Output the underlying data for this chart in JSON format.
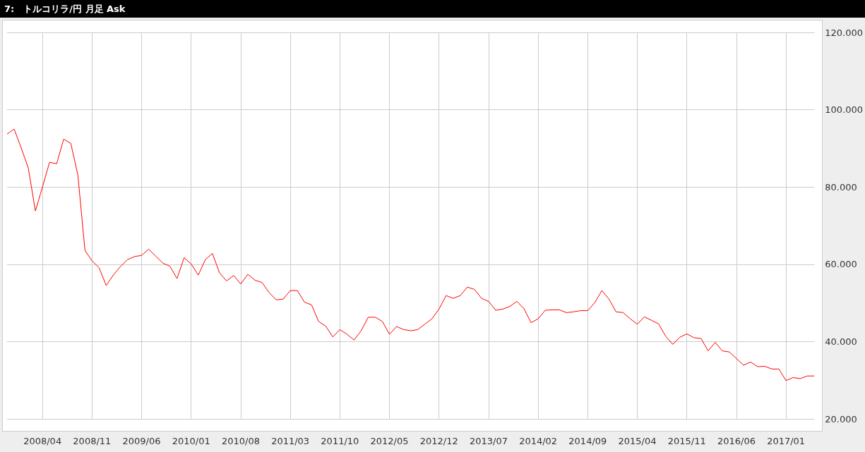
{
  "chart_data": {
    "type": "line",
    "title": "7:　トルコリラ/円 月足 Ask",
    "categories": [
      null,
      null,
      null,
      null,
      null,
      "2008/04",
      null,
      null,
      null,
      null,
      null,
      null,
      "2008/11",
      null,
      null,
      null,
      null,
      null,
      null,
      "2009/06",
      null,
      null,
      null,
      null,
      null,
      null,
      "2010/01",
      null,
      null,
      null,
      null,
      null,
      null,
      "2010/08",
      null,
      null,
      null,
      null,
      null,
      null,
      "2011/03",
      null,
      null,
      null,
      null,
      null,
      null,
      "2011/10",
      null,
      null,
      null,
      null,
      null,
      null,
      "2012/05",
      null,
      null,
      null,
      null,
      null,
      null,
      "2012/12",
      null,
      null,
      null,
      null,
      null,
      null,
      "2013/07",
      null,
      null,
      null,
      null,
      null,
      null,
      "2014/02",
      null,
      null,
      null,
      null,
      null,
      null,
      "2014/09",
      null,
      null,
      null,
      null,
      null,
      null,
      "2015/04",
      null,
      null,
      null,
      null,
      null,
      null,
      "2015/11",
      null,
      null,
      null,
      null,
      null,
      null,
      "2016/06",
      null,
      null,
      null,
      null,
      null,
      null,
      "2017/01",
      null,
      null,
      null,
      null
    ],
    "series": [
      {
        "color": "#ff0000",
        "values": [
          93.7,
          95.0,
          90.1,
          84.9,
          73.8,
          80.0,
          86.4,
          86.0,
          92.4,
          91.3,
          83.1,
          63.6,
          60.9,
          59.1,
          54.5,
          57.2,
          59.4,
          61.2,
          62.0,
          62.3,
          63.9,
          62.1,
          60.3,
          59.5,
          56.3,
          61.7,
          60.1,
          57.2,
          61.2,
          62.8,
          57.8,
          55.7,
          57.1,
          54.9,
          57.4,
          55.9,
          55.3,
          52.7,
          50.8,
          51.0,
          53.2,
          53.2,
          50.2,
          49.5,
          45.2,
          44.0,
          41.2,
          43.1,
          41.9,
          40.4,
          42.8,
          46.3,
          46.3,
          45.2,
          41.9,
          43.9,
          43.1,
          42.8,
          43.1,
          44.5,
          45.9,
          48.4,
          51.9,
          51.2,
          51.9,
          54.1,
          53.5,
          51.2,
          50.4,
          48.1,
          48.4,
          49.1,
          50.4,
          48.5,
          44.9,
          45.9,
          48.1,
          48.2,
          48.2,
          47.5,
          47.7,
          48.0,
          48.0,
          50.1,
          53.2,
          51.0,
          47.7,
          47.5,
          45.9,
          44.5,
          46.4,
          45.5,
          44.6,
          41.4,
          39.3,
          41.1,
          42.0,
          41.0,
          40.8,
          37.6,
          39.8,
          37.6,
          37.3,
          35.6,
          33.9,
          34.7,
          33.5,
          33.6,
          32.9,
          32.9,
          29.9,
          30.7,
          30.4,
          31.1,
          31.1
        ]
      }
    ],
    "ylim": [
      20,
      120
    ],
    "yticks": [
      {
        "value": 20,
        "label": "20.000"
      },
      {
        "value": 40,
        "label": "40.000"
      },
      {
        "value": 60,
        "label": "60.000"
      },
      {
        "value": 80,
        "label": "80.000"
      },
      {
        "value": 100,
        "label": "100.000"
      },
      {
        "value": 120,
        "label": "120.000"
      }
    ],
    "grid": true
  }
}
